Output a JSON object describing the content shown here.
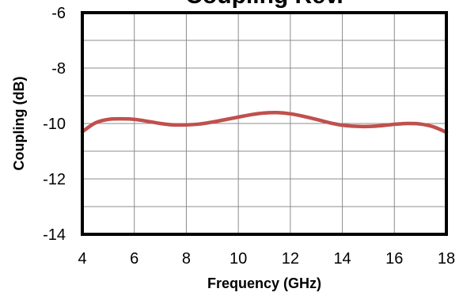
{
  "chart_data": {
    "type": "line",
    "title": "Coupling Rev.",
    "xlabel": "Frequency (GHz)",
    "ylabel": "Coupling (dB)",
    "xlim": [
      4,
      18
    ],
    "ylim": [
      -14,
      -6
    ],
    "x_ticks": [
      4,
      6,
      8,
      10,
      12,
      14,
      16,
      18
    ],
    "y_ticks": [
      -14,
      -12,
      -10,
      -8,
      -6
    ],
    "grid": true,
    "series": [
      {
        "color": "#C0504D",
        "x": [
          4.0,
          4.5,
          5.0,
          5.5,
          6.0,
          6.5,
          7.0,
          7.5,
          8.0,
          8.5,
          9.0,
          9.5,
          10.0,
          10.5,
          11.0,
          11.5,
          12.0,
          12.5,
          13.0,
          13.5,
          14.0,
          14.5,
          15.0,
          15.5,
          16.0,
          16.5,
          17.0,
          17.5,
          18.0
        ],
        "y": [
          -10.3,
          -9.98,
          -9.85,
          -9.83,
          -9.85,
          -9.92,
          -10.0,
          -10.05,
          -10.05,
          -10.02,
          -9.95,
          -9.86,
          -9.77,
          -9.68,
          -9.62,
          -9.61,
          -9.65,
          -9.74,
          -9.85,
          -9.97,
          -10.06,
          -10.1,
          -10.11,
          -10.08,
          -10.03,
          -10.0,
          -10.02,
          -10.12,
          -10.32
        ]
      }
    ]
  }
}
